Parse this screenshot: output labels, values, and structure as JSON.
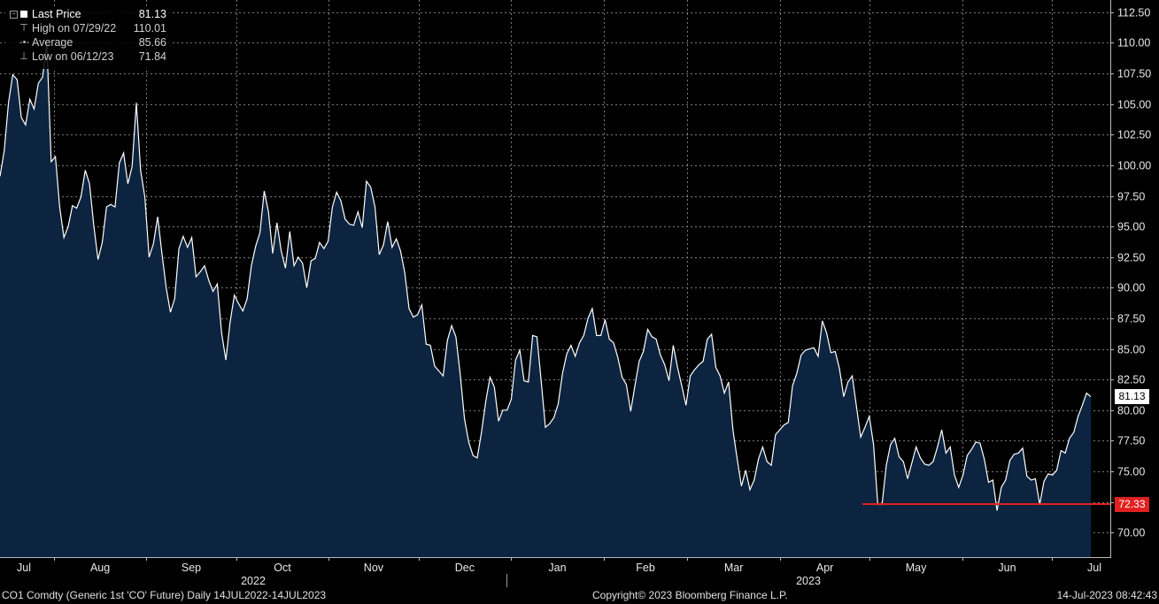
{
  "legend": {
    "last_label": "Last Price",
    "last_value": "81.13",
    "high_label": "High on 07/29/22",
    "high_value": "110.01",
    "avg_label": "Average",
    "avg_value": "85.66",
    "low_label": "Low on 06/12/23",
    "low_value": "71.84"
  },
  "footer": {
    "ticker": "CO1 Comdty (Generic 1st 'CO' Future)  Daily 14JUL2022-14JUL2023",
    "copyright": "Copyright© 2023 Bloomberg Finance L.P.",
    "timestamp": "14-Jul-2023 08:42:43"
  },
  "colors": {
    "line": "#ffffff",
    "fill": "#0c2440",
    "marker_line": "#e02020",
    "grid": "#7a7a7a"
  },
  "chart_data": {
    "type": "area",
    "ylim": [
      68.0,
      113.5
    ],
    "y_ticks": [
      "112.50",
      "110.00",
      "107.50",
      "105.00",
      "102.50",
      "100.00",
      "97.50",
      "95.00",
      "92.50",
      "90.00",
      "87.50",
      "85.00",
      "82.50",
      "80.00",
      "77.50",
      "75.00",
      "72.50",
      "70.00"
    ],
    "month_labels": [
      "Jul",
      "Aug",
      "Sep",
      "Oct",
      "Nov",
      "Dec",
      "Jan",
      "Feb",
      "Mar",
      "Apr",
      "May",
      "Jun",
      "Jul"
    ],
    "year_labels": [
      "2022",
      "2023"
    ],
    "last_price_box": "81.13",
    "low_line_box": "72.33",
    "low_line_value": 72.33,
    "low_line_start": "2023-05-01",
    "x_start": "2022-07-14",
    "x_end": "2023-07-14",
    "series": [
      {
        "values": [
          99.1,
          101.2,
          105.1,
          107.4,
          107.0,
          103.9,
          103.3,
          105.4,
          104.6,
          106.7,
          107.2,
          110.0,
          100.3,
          100.7,
          96.6,
          94.1,
          95.0,
          96.7,
          96.5,
          97.4,
          99.6,
          98.5,
          95.1,
          92.3,
          93.7,
          96.6,
          96.8,
          96.6,
          100.2,
          101.0,
          98.5,
          99.9,
          105.1,
          99.6,
          97.4,
          92.5,
          93.6,
          95.8,
          92.8,
          90.0,
          88.0,
          89.1,
          93.2,
          94.2,
          93.3,
          94.1,
          90.9,
          91.3,
          91.8,
          90.6,
          89.7,
          90.3,
          86.3,
          84.1,
          87.2,
          89.4,
          88.7,
          88.1,
          89.1,
          91.8,
          93.4,
          94.5,
          97.9,
          96.2,
          92.8,
          95.3,
          93.0,
          91.6,
          94.6,
          91.8,
          92.5,
          92.0,
          90.0,
          92.2,
          92.4,
          93.7,
          93.2,
          93.8,
          96.6,
          97.8,
          97.1,
          95.6,
          95.2,
          95.1,
          96.2,
          94.9,
          98.7,
          98.2,
          96.6,
          92.7,
          93.5,
          95.4,
          93.3,
          94.0,
          93.0,
          91.2,
          88.3,
          87.6,
          87.8,
          88.6,
          85.4,
          85.3,
          83.6,
          83.2,
          82.8,
          85.7,
          86.9,
          86.0,
          82.9,
          79.3,
          77.4,
          76.3,
          76.1,
          78.2,
          80.7,
          82.7,
          81.9,
          79.1,
          80.0,
          80.0,
          80.9,
          84.1,
          84.9,
          82.4,
          82.3,
          86.1,
          86.0,
          82.4,
          78.6,
          78.9,
          79.4,
          80.5,
          83.0,
          84.6,
          85.3,
          84.4,
          85.5,
          86.1,
          87.5,
          88.3,
          86.1,
          86.1,
          87.4,
          85.8,
          85.5,
          84.3,
          82.7,
          82.1,
          79.9,
          82.0,
          84.0,
          84.8,
          86.6,
          86.0,
          85.8,
          84.5,
          83.7,
          82.4,
          85.3,
          83.5,
          82.0,
          80.4,
          82.8,
          83.3,
          83.7,
          84.0,
          85.8,
          86.2,
          83.5,
          82.8,
          81.4,
          82.3,
          78.4,
          76.0,
          73.8,
          75.1,
          73.5,
          74.3,
          76.0,
          77.0,
          75.8,
          75.5,
          78.0,
          78.4,
          78.8,
          79.0,
          82.0,
          83.0,
          84.5,
          84.9,
          85.0,
          85.1,
          84.4,
          87.3,
          86.3,
          84.7,
          84.8,
          83.4,
          81.1,
          82.3,
          82.8,
          80.3,
          77.8,
          78.6,
          79.5,
          77.2,
          72.3,
          72.3,
          75.5,
          77.2,
          77.7,
          76.2,
          75.8,
          74.4,
          75.7,
          77.0,
          76.1,
          75.6,
          75.5,
          75.8,
          77.0,
          78.4,
          76.5,
          77.0,
          74.7,
          73.7,
          74.7,
          76.3,
          76.8,
          77.4,
          77.3,
          76.0,
          74.1,
          74.3,
          71.8,
          73.7,
          74.3,
          75.9,
          76.4,
          76.5,
          76.9,
          74.6,
          74.3,
          74.4,
          72.3,
          74.2,
          74.8,
          74.7,
          75.1,
          76.7,
          76.5,
          77.7,
          78.2,
          79.5,
          80.4,
          81.4,
          81.1
        ]
      }
    ]
  }
}
